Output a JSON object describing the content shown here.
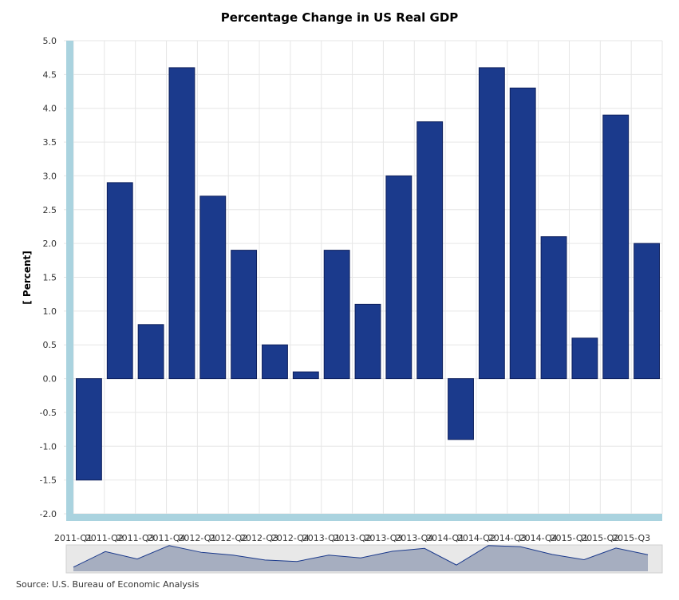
{
  "chart_data": {
    "type": "bar",
    "title": "Percentage Change in US Real GDP",
    "xlabel": "",
    "ylabel": "[ Percent]",
    "ylim": [
      -2.0,
      5.0
    ],
    "yticks": [
      "5.0",
      "4.5",
      "4.0",
      "3.5",
      "3.0",
      "2.5",
      "2.0",
      "1.5",
      "1.0",
      "0.5",
      "0.0",
      "-0.5",
      "-1.0",
      "-1.5",
      "-2.0"
    ],
    "categories": [
      "2011-Q1",
      "2011-Q2",
      "2011-Q3",
      "2011-Q4",
      "2012-Q1",
      "2012-Q2",
      "2012-Q3",
      "2012-Q4",
      "2013-Q1",
      "2013-Q2",
      "2013-Q3",
      "2013-Q4",
      "2014-Q1",
      "2014-Q2",
      "2014-Q3",
      "2014-Q4",
      "2015-Q1",
      "2015-Q2",
      "2015-Q3"
    ],
    "values": [
      -1.5,
      2.9,
      0.8,
      4.6,
      2.7,
      1.9,
      0.5,
      0.1,
      1.9,
      1.1,
      3.0,
      3.8,
      -0.9,
      4.6,
      4.3,
      2.1,
      0.6,
      3.9,
      2.0
    ],
    "grid": true,
    "legend": "none",
    "colors": {
      "bar": "#1b3a8c",
      "bar_edge": "#0d1f5c",
      "axis_band": "#aad3df",
      "grid": "#e6e6e6",
      "navigator_fill": "#9aa3b8",
      "navigator_line": "#1b3a8c",
      "navigator_bg": "#e8e8e8"
    }
  },
  "source": "Source: U.S. Bureau of Economic Analysis"
}
